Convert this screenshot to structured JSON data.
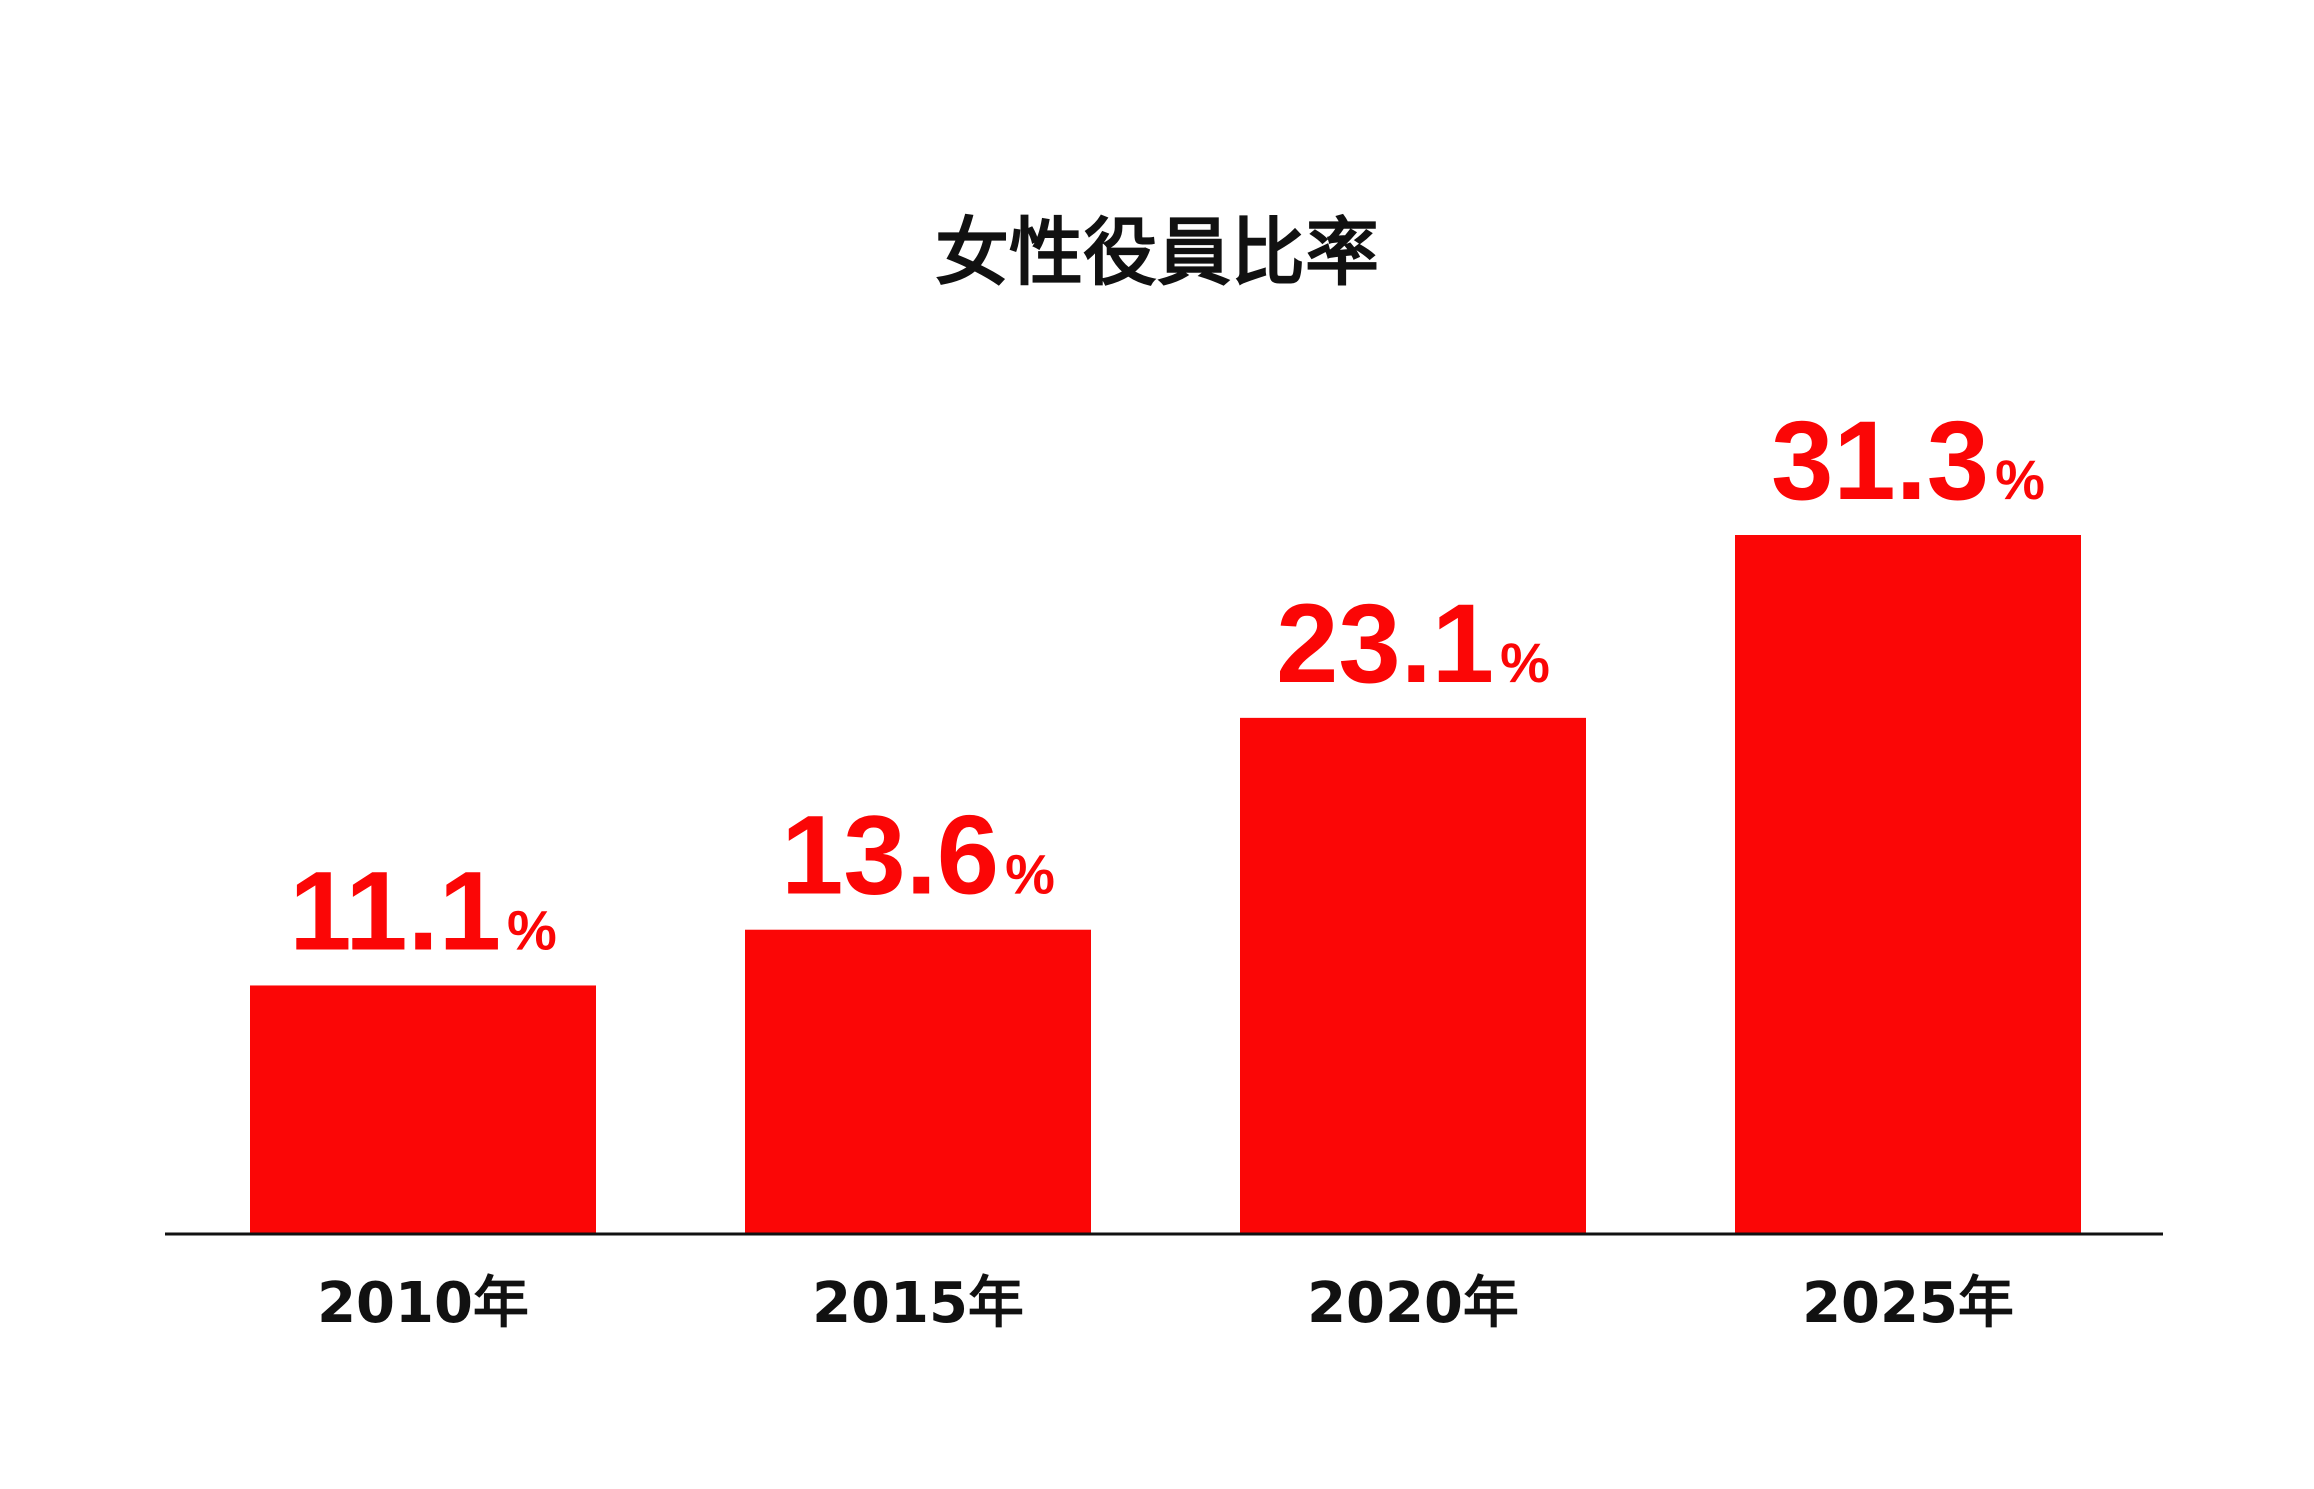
{
  "chart_data": {
    "type": "bar",
    "title": "女性役員比率",
    "categories": [
      "2010年",
      "2015年",
      "2020年",
      "2025年"
    ],
    "values": [
      11.1,
      13.6,
      23.1,
      31.3
    ],
    "data_labels": [
      "11.1",
      "13.6",
      "23.1",
      "31.3"
    ],
    "unit": "%",
    "xlabel": "",
    "ylabel": "",
    "ylim": [
      0,
      31.3
    ],
    "grid": false,
    "legend": "none",
    "bar_color": "#fb0606",
    "axis_color": "#111111"
  }
}
